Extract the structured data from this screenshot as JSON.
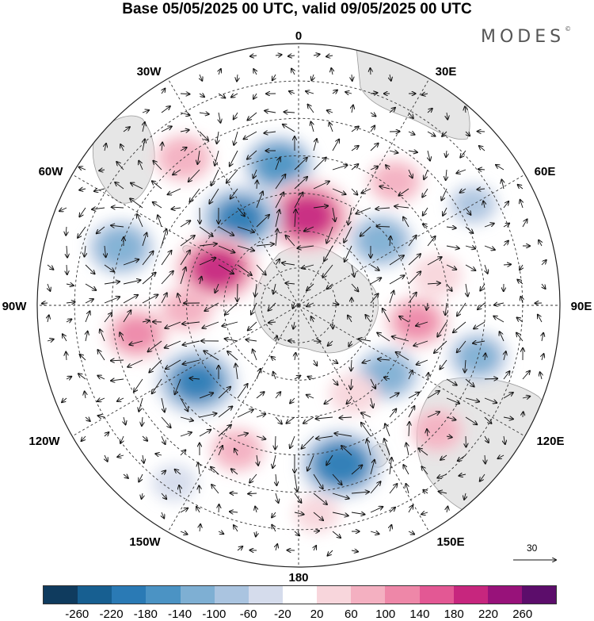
{
  "title": "Base 05/05/2025 00 UTC, valid 09/05/2025 00 UTC",
  "brand": "MODES",
  "brand_mark": "©",
  "longitude_labels": [
    {
      "text": "0",
      "lon": 0
    },
    {
      "text": "30E",
      "lon": 30
    },
    {
      "text": "60E",
      "lon": 60
    },
    {
      "text": "90E",
      "lon": 90
    },
    {
      "text": "120E",
      "lon": 120
    },
    {
      "text": "150E",
      "lon": 150
    },
    {
      "text": "180",
      "lon": 180
    },
    {
      "text": "150W",
      "lon": -150
    },
    {
      "text": "120W",
      "lon": -120
    },
    {
      "text": "90W",
      "lon": -90
    },
    {
      "text": "60W",
      "lon": -60
    },
    {
      "text": "30W",
      "lon": -30
    }
  ],
  "vector_scale": {
    "label": "30",
    "icon": "arrow-right-icon"
  },
  "colorbar": {
    "ticks": [
      "-260",
      "-220",
      "-180",
      "-140",
      "-100",
      "-60",
      "-20",
      "20",
      "60",
      "100",
      "140",
      "180",
      "220",
      "260"
    ],
    "colors": [
      "#0f3b5e",
      "#175f91",
      "#2a7ab5",
      "#4b93c4",
      "#7eafd3",
      "#aac4e0",
      "#d5dcec",
      "#ffffff",
      "#f8d6dc",
      "#f4b0c1",
      "#ee87a8",
      "#e35894",
      "#c7267e",
      "#98127a",
      "#5c0d6b"
    ]
  },
  "anomalies": [
    {
      "lon": -8,
      "lat": -52,
      "value": -150
    },
    {
      "lon": 6,
      "lat": -66,
      "value": 220
    },
    {
      "lon": -34,
      "lat": -62,
      "value": -190
    },
    {
      "lon": -66,
      "lat": -66,
      "value": 200
    },
    {
      "lon": -72,
      "lat": -40,
      "value": -130
    },
    {
      "lon": -38,
      "lat": -40,
      "value": 100
    },
    {
      "lon": 38,
      "lat": -48,
      "value": 80
    },
    {
      "lon": 52,
      "lat": -62,
      "value": -120
    },
    {
      "lon": 60,
      "lat": -36,
      "value": -60
    },
    {
      "lon": 78,
      "lat": -52,
      "value": 60
    },
    {
      "lon": 98,
      "lat": -58,
      "value": 120
    },
    {
      "lon": 106,
      "lat": -40,
      "value": -110
    },
    {
      "lon": 128,
      "lat": -60,
      "value": -120
    },
    {
      "lon": 148,
      "lat": -62,
      "value": 60
    },
    {
      "lon": 132,
      "lat": -40,
      "value": 80
    },
    {
      "lon": 165,
      "lat": -46,
      "value": -200
    },
    {
      "lon": -157,
      "lat": -48,
      "value": 80
    },
    {
      "lon": -127,
      "lat": -56,
      "value": -190
    },
    {
      "lon": -100,
      "lat": -46,
      "value": 120
    },
    {
      "lon": -92,
      "lat": -60,
      "value": 80
    },
    {
      "lon": -145,
      "lat": -32,
      "value": -40
    },
    {
      "lon": 175,
      "lat": -34,
      "value": 40
    }
  ]
}
